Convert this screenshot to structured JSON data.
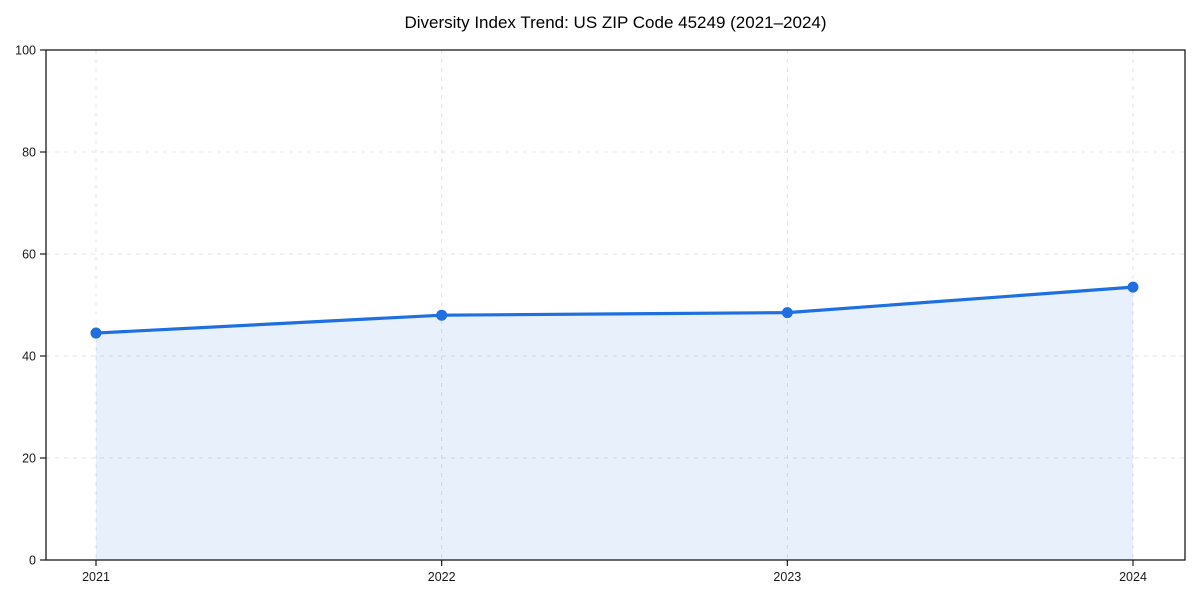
{
  "chart_data": {
    "type": "line",
    "title": "Diversity Index Trend: US ZIP Code 45249 (2021–2024)",
    "x": [
      "2021",
      "2022",
      "2023",
      "2024"
    ],
    "series": [
      {
        "name": "Diversity Index",
        "values": [
          44.5,
          48.0,
          48.5,
          53.5
        ]
      }
    ],
    "xlabel": "",
    "ylabel": "",
    "ylim": [
      0,
      100
    ],
    "yticks": [
      0,
      20,
      40,
      60,
      80,
      100
    ],
    "grid": {
      "visible": true,
      "style": "dashed",
      "axes": "both"
    },
    "legend_position": "none",
    "area_fill": true,
    "marker": "circle",
    "colors": {
      "line": "#1f6fe0",
      "marker": "#1f6fe0",
      "area": "rgba(31,111,224,0.10)",
      "grid": "#e3e3e3",
      "spine": "#1a1a1a",
      "tick_label": "#1a1a1a",
      "title": "#000000",
      "background": "#ffffff"
    }
  }
}
